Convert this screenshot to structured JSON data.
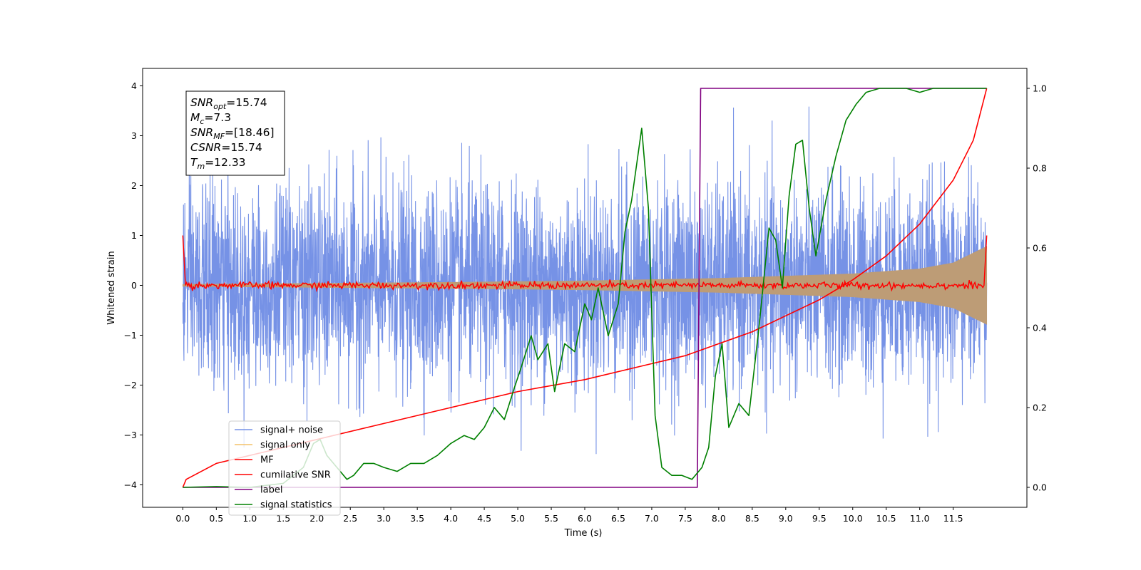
{
  "chart_data": {
    "type": "line",
    "title": "",
    "xlabel": "Time (s)",
    "ylabel": "Whitened strain",
    "ylabel_right": "",
    "xlim": [
      -0.6,
      12.6
    ],
    "ylim": [
      -4.45,
      4.35
    ],
    "ylim_right": [
      -0.05,
      1.05
    ],
    "xticks": [
      "0.0",
      "0.5",
      "1.0",
      "1.5",
      "2.0",
      "2.5",
      "3.0",
      "3.5",
      "4.0",
      "4.5",
      "5.0",
      "5.5",
      "6.0",
      "6.5",
      "7.0",
      "7.5",
      "8.0",
      "8.5",
      "9.0",
      "9.5",
      "10.0",
      "10.5",
      "11.0",
      "11.5"
    ],
    "yticks_left": [
      "4",
      "3",
      "2",
      "1",
      "0",
      "−1",
      "−2",
      "−3",
      "−4"
    ],
    "yticks_right": [
      "1.0",
      "0.8",
      "0.6",
      "0.4",
      "0.2",
      "0.0"
    ],
    "grid": false,
    "legend_position": "lower-left",
    "annotation": {
      "lines": [
        {
          "base": "SNR",
          "sub": "opt",
          "rest": "=15.74"
        },
        {
          "base": "M",
          "sub": "c",
          "rest": "=7.3"
        },
        {
          "base": "SNR",
          "sub": "MF",
          "rest": "=[18.46]"
        },
        {
          "base": "CSNR",
          "sub": "",
          "rest": "=15.74"
        },
        {
          "base": "T",
          "sub": "m",
          "rest": "=12.33"
        }
      ]
    },
    "series": [
      {
        "name": "signal+ noise",
        "color": "#7692e6",
        "axis": "left",
        "description_values": {
          "x_range": [
            0.0,
            12.0
          ],
          "approx_std": 1.0,
          "max": 3.95,
          "min": -4.0
        }
      },
      {
        "name": "signal only",
        "color": "#f4c26a",
        "axis": "left",
        "envelope": {
          "x": [
            0,
            2,
            4,
            6,
            8,
            10,
            11,
            11.5,
            12.0
          ],
          "amp": [
            0.02,
            0.04,
            0.06,
            0.09,
            0.14,
            0.23,
            0.33,
            0.45,
            0.78
          ]
        }
      },
      {
        "name": "MF",
        "color": "#ff0000",
        "axis": "left",
        "notes_values": {
          "start": 1.0,
          "level": 0.0,
          "end": 1.0
        }
      },
      {
        "name": "cumilative SNR",
        "color": "#ff0000",
        "axis": "right",
        "x": [
          0.0,
          0.05,
          0.5,
          1.0,
          2.0,
          3.0,
          4.0,
          5.0,
          6.0,
          7.0,
          7.5,
          8.0,
          8.5,
          9.0,
          9.5,
          10.0,
          10.5,
          11.0,
          11.5,
          11.8,
          12.0
        ],
        "y": [
          0.0,
          0.02,
          0.06,
          0.08,
          0.12,
          0.16,
          0.2,
          0.24,
          0.27,
          0.31,
          0.33,
          0.36,
          0.39,
          0.43,
          0.47,
          0.52,
          0.58,
          0.66,
          0.77,
          0.87,
          1.0
        ]
      },
      {
        "name": "label",
        "color": "#800080",
        "axis": "right",
        "x": [
          0.0,
          7.68,
          7.73,
          12.0
        ],
        "y": [
          0.0,
          0.0,
          1.0,
          1.0
        ]
      },
      {
        "name": "signal statistics",
        "color": "#008000",
        "axis": "right",
        "x": [
          0.0,
          0.5,
          1.0,
          1.5,
          1.8,
          1.95,
          2.05,
          2.15,
          2.3,
          2.45,
          2.55,
          2.7,
          2.85,
          3.0,
          3.2,
          3.4,
          3.6,
          3.8,
          4.0,
          4.2,
          4.35,
          4.5,
          4.65,
          4.8,
          4.95,
          5.05,
          5.2,
          5.3,
          5.45,
          5.55,
          5.7,
          5.85,
          6.0,
          6.1,
          6.2,
          6.35,
          6.5,
          6.6,
          6.7,
          6.85,
          6.95,
          7.05,
          7.15,
          7.3,
          7.45,
          7.6,
          7.75,
          7.85,
          7.95,
          8.05,
          8.15,
          8.3,
          8.45,
          8.6,
          8.75,
          8.85,
          8.95,
          9.05,
          9.15,
          9.25,
          9.35,
          9.45,
          9.6,
          9.75,
          9.9,
          10.05,
          10.2,
          10.4,
          10.6,
          10.8,
          11.0,
          11.2,
          11.5,
          12.0
        ],
        "y": [
          0.0,
          0.002,
          0.0,
          0.01,
          0.05,
          0.11,
          0.12,
          0.08,
          0.05,
          0.02,
          0.03,
          0.06,
          0.06,
          0.05,
          0.04,
          0.06,
          0.06,
          0.08,
          0.11,
          0.13,
          0.12,
          0.15,
          0.2,
          0.17,
          0.25,
          0.3,
          0.38,
          0.32,
          0.36,
          0.24,
          0.36,
          0.34,
          0.46,
          0.42,
          0.5,
          0.38,
          0.46,
          0.64,
          0.72,
          0.9,
          0.7,
          0.18,
          0.05,
          0.03,
          0.03,
          0.02,
          0.05,
          0.1,
          0.28,
          0.36,
          0.15,
          0.21,
          0.18,
          0.4,
          0.65,
          0.62,
          0.5,
          0.73,
          0.86,
          0.87,
          0.7,
          0.58,
          0.72,
          0.83,
          0.92,
          0.96,
          0.99,
          1.0,
          1.0,
          1.0,
          0.99,
          1.0,
          1.0,
          1.0
        ]
      }
    ]
  }
}
